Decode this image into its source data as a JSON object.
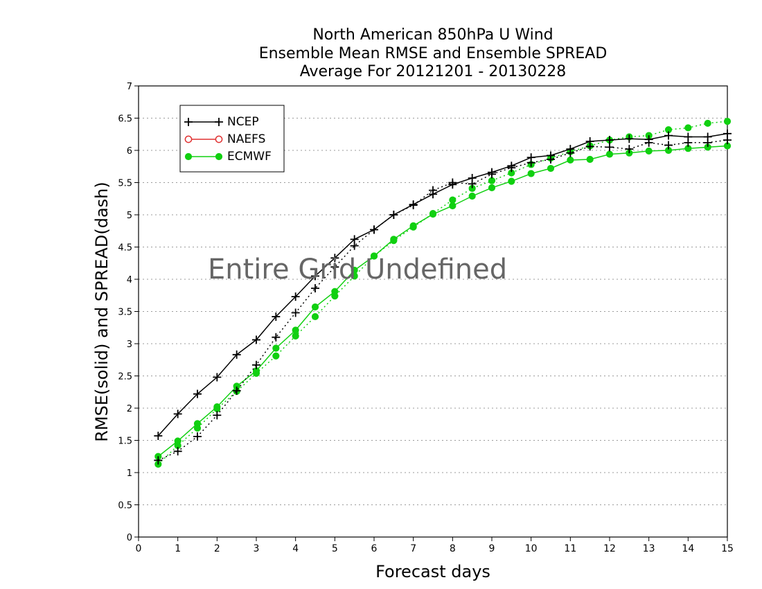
{
  "chart_data": {
    "type": "line",
    "title_lines": [
      "North American 850hPa U Wind",
      "Ensemble Mean RMSE and Ensemble SPREAD",
      "Average For 20121201 - 20130228"
    ],
    "xlabel": "Forecast days",
    "ylabel": "RMSE(solid) and SPREAD(dash)",
    "xlim": [
      0,
      15
    ],
    "ylim": [
      0,
      7
    ],
    "x_ticks": [
      "0",
      "1",
      "2",
      "3",
      "4",
      "5",
      "6",
      "7",
      "8",
      "9",
      "10",
      "11",
      "12",
      "13",
      "14",
      "15"
    ],
    "y_ticks": [
      "0",
      "0.5",
      "1",
      "1.5",
      "2",
      "2.5",
      "3",
      "3.5",
      "4",
      "4.5",
      "5",
      "5.5",
      "6",
      "6.5",
      "7"
    ],
    "grid": "dotted horizontal",
    "overlay_text": "Entire Grid Undefined",
    "legend": {
      "placement": "top-left",
      "entries": [
        {
          "name": "NCEP",
          "color": "#000000",
          "marker": "plus"
        },
        {
          "name": "NAEFS",
          "color": "#e03030",
          "marker": "open-circle"
        },
        {
          "name": "ECMWF",
          "color": "#10d010",
          "marker": "filled-circle"
        }
      ]
    },
    "x": [
      0.5,
      1,
      1.5,
      2,
      2.5,
      3,
      3.5,
      4,
      4.5,
      5,
      5.5,
      6,
      6.5,
      7,
      7.5,
      8,
      8.5,
      9,
      9.5,
      10,
      10.5,
      11,
      11.5,
      12,
      12.5,
      13,
      13.5,
      14,
      14.5,
      15
    ],
    "series": [
      {
        "name": "NCEP",
        "kind": "RMSE",
        "style": "solid",
        "color": "#000000",
        "marker": "plus",
        "values": [
          1.57,
          1.91,
          2.22,
          2.48,
          2.83,
          3.06,
          3.42,
          3.73,
          4.05,
          4.33,
          4.62,
          4.77,
          5.0,
          5.16,
          5.32,
          5.47,
          5.57,
          5.66,
          5.76,
          5.89,
          5.92,
          6.02,
          6.14,
          6.16,
          6.18,
          6.17,
          6.23,
          6.21,
          6.21,
          6.26
        ]
      },
      {
        "name": "NCEP",
        "kind": "SPREAD",
        "style": "dash",
        "color": "#000000",
        "marker": "plus",
        "values": [
          1.19,
          1.33,
          1.56,
          1.89,
          2.27,
          2.67,
          3.1,
          3.48,
          3.86,
          4.19,
          4.52,
          4.77,
          5.0,
          5.15,
          5.38,
          5.5,
          5.48,
          5.63,
          5.73,
          5.81,
          5.86,
          5.96,
          6.06,
          6.05,
          6.02,
          6.12,
          6.08,
          6.12,
          6.12,
          6.16
        ]
      },
      {
        "name": "ECMWF",
        "kind": "RMSE",
        "style": "solid",
        "color": "#10d010",
        "marker": "filled-circle",
        "values": [
          1.25,
          1.49,
          1.76,
          2.02,
          2.34,
          2.58,
          2.93,
          3.21,
          3.57,
          3.81,
          4.14,
          4.36,
          4.62,
          4.83,
          5.01,
          5.14,
          5.29,
          5.42,
          5.52,
          5.64,
          5.72,
          5.85,
          5.86,
          5.94,
          5.96,
          5.99,
          6.0,
          6.03,
          6.05,
          6.07
        ]
      },
      {
        "name": "ECMWF",
        "kind": "SPREAD",
        "style": "dash",
        "color": "#10d010",
        "marker": "filled-circle",
        "values": [
          1.13,
          1.42,
          1.69,
          1.99,
          2.26,
          2.54,
          2.81,
          3.12,
          3.42,
          3.74,
          4.05,
          4.36,
          4.6,
          4.81,
          5.02,
          5.23,
          5.41,
          5.53,
          5.65,
          5.78,
          5.88,
          5.98,
          6.07,
          6.16,
          6.21,
          6.23,
          6.32,
          6.35,
          6.42,
          6.45
        ]
      }
    ]
  }
}
